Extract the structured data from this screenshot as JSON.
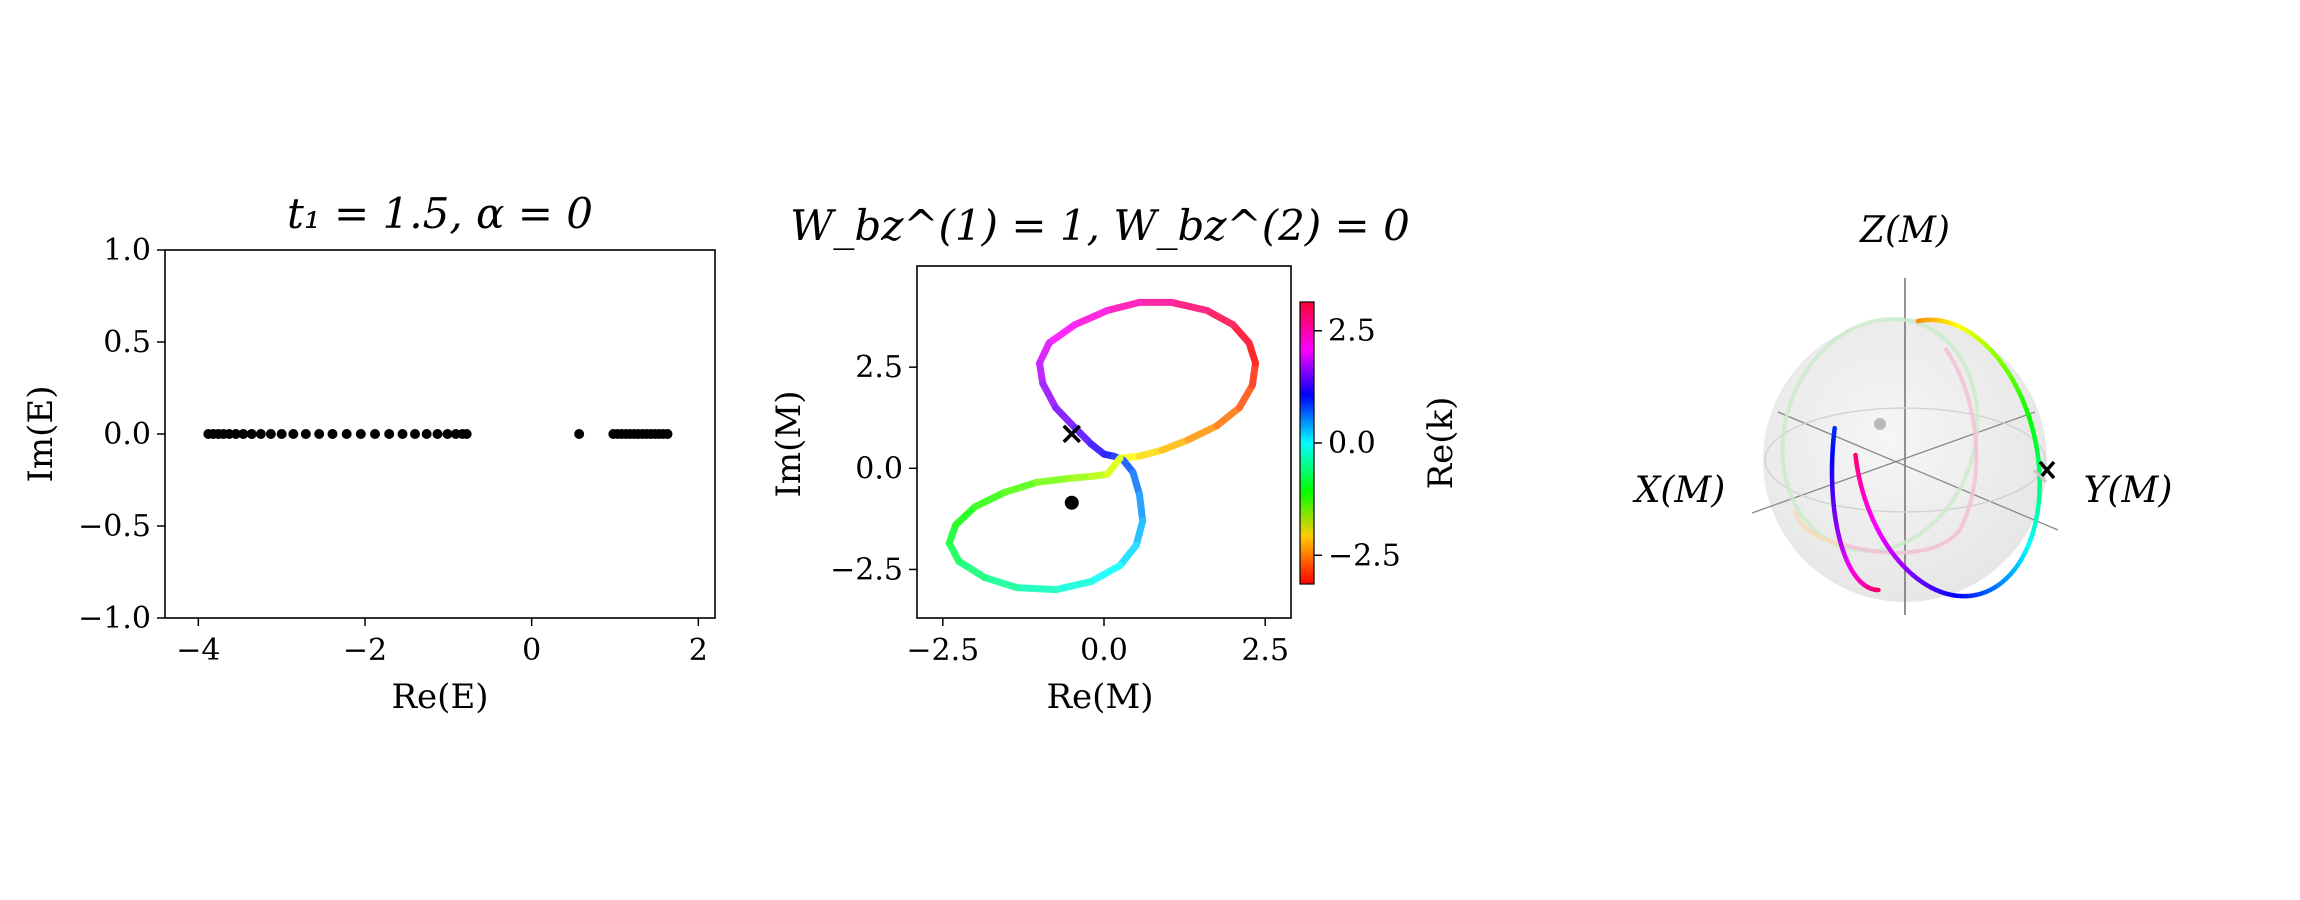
{
  "chart_data": [
    {
      "type": "scatter",
      "title": "t₁ = 1.5, α = 0",
      "xlabel": "Re(E)",
      "ylabel": "Im(E)",
      "xlim": [
        -4.4,
        2.2
      ],
      "ylim": [
        -1.0,
        1.0
      ],
      "xticks": [
        "−4",
        "−2",
        "0",
        "2"
      ],
      "yticks": [
        "1.0",
        "0.5",
        "0.0",
        "−0.5",
        "−1.0"
      ],
      "grid": false,
      "series": [
        {
          "values": [
            [
              -3.88,
              0
            ],
            [
              -3.82,
              0
            ],
            [
              -3.76,
              0
            ],
            [
              -3.7,
              0
            ],
            [
              -3.63,
              0
            ],
            [
              -3.55,
              0
            ],
            [
              -3.46,
              0
            ],
            [
              -3.36,
              0
            ],
            [
              -3.25,
              0
            ],
            [
              -3.13,
              0
            ],
            [
              -3.0,
              0
            ],
            [
              -2.86,
              0
            ],
            [
              -2.71,
              0
            ],
            [
              -2.55,
              0
            ],
            [
              -2.39,
              0
            ],
            [
              -2.22,
              0
            ],
            [
              -2.05,
              0
            ],
            [
              -1.88,
              0
            ],
            [
              -1.71,
              0
            ],
            [
              -1.55,
              0
            ],
            [
              -1.4,
              0
            ],
            [
              -1.26,
              0
            ],
            [
              -1.13,
              0
            ],
            [
              -1.01,
              0
            ],
            [
              -0.91,
              0
            ],
            [
              -0.83,
              0
            ],
            [
              -0.78,
              0
            ],
            [
              0.57,
              0
            ],
            [
              0.98,
              0
            ],
            [
              1.03,
              0
            ],
            [
              1.08,
              0
            ],
            [
              1.13,
              0
            ],
            [
              1.18,
              0
            ],
            [
              1.23,
              0
            ],
            [
              1.28,
              0
            ],
            [
              1.33,
              0
            ],
            [
              1.38,
              0
            ],
            [
              1.43,
              0
            ],
            [
              1.48,
              0
            ],
            [
              1.53,
              0
            ],
            [
              1.58,
              0
            ],
            [
              1.63,
              0
            ]
          ]
        }
      ]
    },
    {
      "type": "line",
      "title": "W_bz^(1) = 1,  W_bz^(2) = 0",
      "xlabel": "Re(M)",
      "ylabel": "Im(M)",
      "xlim": [
        -2.9,
        2.9
      ],
      "ylim": [
        -3.7,
        5.0
      ],
      "xticks": [
        "−2.5",
        "0.0",
        "2.5"
      ],
      "yticks": [
        "2.5",
        "0.0",
        "−2.5"
      ],
      "colorbar": {
        "label": "Re(k)",
        "range": [
          -3.14,
          3.14
        ],
        "ticks": [
          "2.5",
          "0.0",
          "−2.5"
        ]
      },
      "markers": [
        {
          "symbol": "x",
          "x": -0.5,
          "y": 0.85
        },
        {
          "symbol": "dot",
          "x": -0.5,
          "y": -0.85
        }
      ],
      "series": [
        {
          "values": [
            [
              0.25,
              0.25
            ],
            [
              0.55,
              0.3
            ],
            [
              0.9,
              0.45
            ],
            [
              1.3,
              0.7
            ],
            [
              1.75,
              1.05
            ],
            [
              2.1,
              1.5
            ],
            [
              2.3,
              2.05
            ],
            [
              2.35,
              2.6
            ],
            [
              2.25,
              3.1
            ],
            [
              2.0,
              3.55
            ],
            [
              1.6,
              3.9
            ],
            [
              1.05,
              4.1
            ],
            [
              0.55,
              4.1
            ],
            [
              0.05,
              3.9
            ],
            [
              -0.45,
              3.55
            ],
            [
              -0.85,
              3.1
            ],
            [
              -1.0,
              2.6
            ],
            [
              -0.95,
              2.1
            ],
            [
              -0.75,
              1.5
            ],
            [
              -0.45,
              1.0
            ],
            [
              -0.2,
              0.6
            ],
            [
              0.0,
              0.35
            ],
            [
              0.15,
              0.3
            ],
            [
              0.3,
              0.2
            ],
            [
              0.45,
              -0.1
            ],
            [
              0.55,
              -0.65
            ],
            [
              0.6,
              -1.3
            ],
            [
              0.5,
              -1.9
            ],
            [
              0.25,
              -2.4
            ],
            [
              -0.2,
              -2.8
            ],
            [
              -0.75,
              -3.0
            ],
            [
              -1.35,
              -2.95
            ],
            [
              -1.85,
              -2.7
            ],
            [
              -2.25,
              -2.3
            ],
            [
              -2.4,
              -1.85
            ],
            [
              -2.3,
              -1.4
            ],
            [
              -2.0,
              -0.95
            ],
            [
              -1.55,
              -0.6
            ],
            [
              -1.05,
              -0.35
            ],
            [
              -0.55,
              -0.25
            ],
            [
              -0.2,
              -0.2
            ],
            [
              0.05,
              -0.15
            ],
            [
              0.25,
              0.25
            ]
          ]
        }
      ]
    },
    {
      "type": "scatter",
      "xlabel": "X(M)",
      "ylabel": "Y(M)",
      "zlabel": "Z(M)",
      "grid": false,
      "markers": [
        {
          "symbol": "x",
          "x": 0.0,
          "y": 0.95,
          "z": 0.0
        },
        {
          "symbol": "dot",
          "x": 0.0,
          "y": -0.95,
          "z": 0.0
        }
      ],
      "series": [
        {
          "values": []
        }
      ]
    }
  ]
}
